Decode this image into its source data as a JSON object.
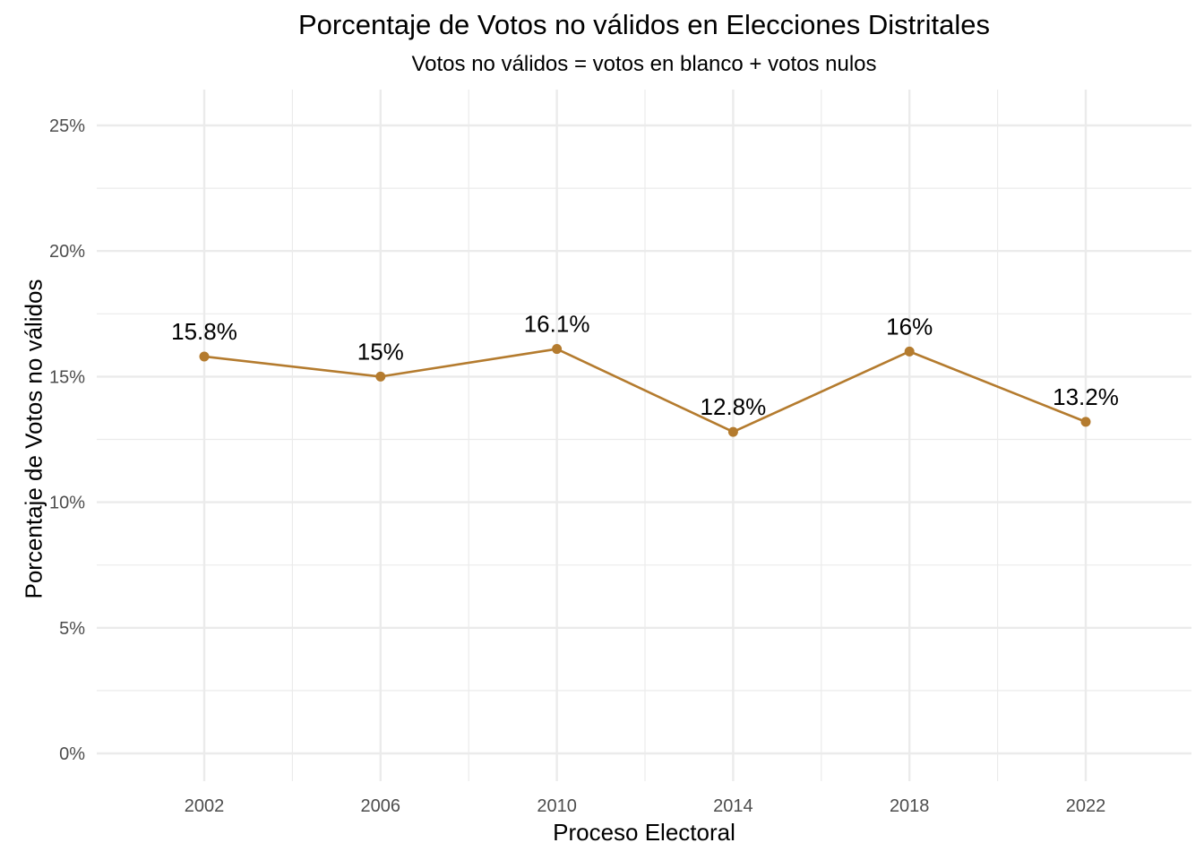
{
  "chart_data": {
    "type": "line",
    "title": "Porcentaje de Votos no válidos en Elecciones Distritales",
    "subtitle": "Votos no válidos = votos en blanco + votos nulos",
    "xlabel": "Proceso Electoral",
    "ylabel": "Porcentaje de Votos no válidos",
    "x": [
      2002,
      2006,
      2010,
      2014,
      2018,
      2022
    ],
    "x_tick_labels": [
      "2002",
      "2006",
      "2010",
      "2014",
      "2018",
      "2022"
    ],
    "y": [
      15.8,
      15.0,
      16.1,
      12.8,
      16.0,
      13.2
    ],
    "data_labels": [
      "15.8%",
      "15%",
      "16.1%",
      "12.8%",
      "16%",
      "13.2%"
    ],
    "y_ticks": [
      0,
      5,
      10,
      15,
      20,
      25
    ],
    "y_tick_labels": [
      "0%",
      "5%",
      "10%",
      "15%",
      "20%",
      "25%"
    ],
    "ylim": [
      0,
      25
    ],
    "xlim": [
      2002,
      2022
    ],
    "grid": true,
    "legend": "none",
    "line_color": "#B47B2E",
    "grid_color": "#EBEBEB"
  }
}
